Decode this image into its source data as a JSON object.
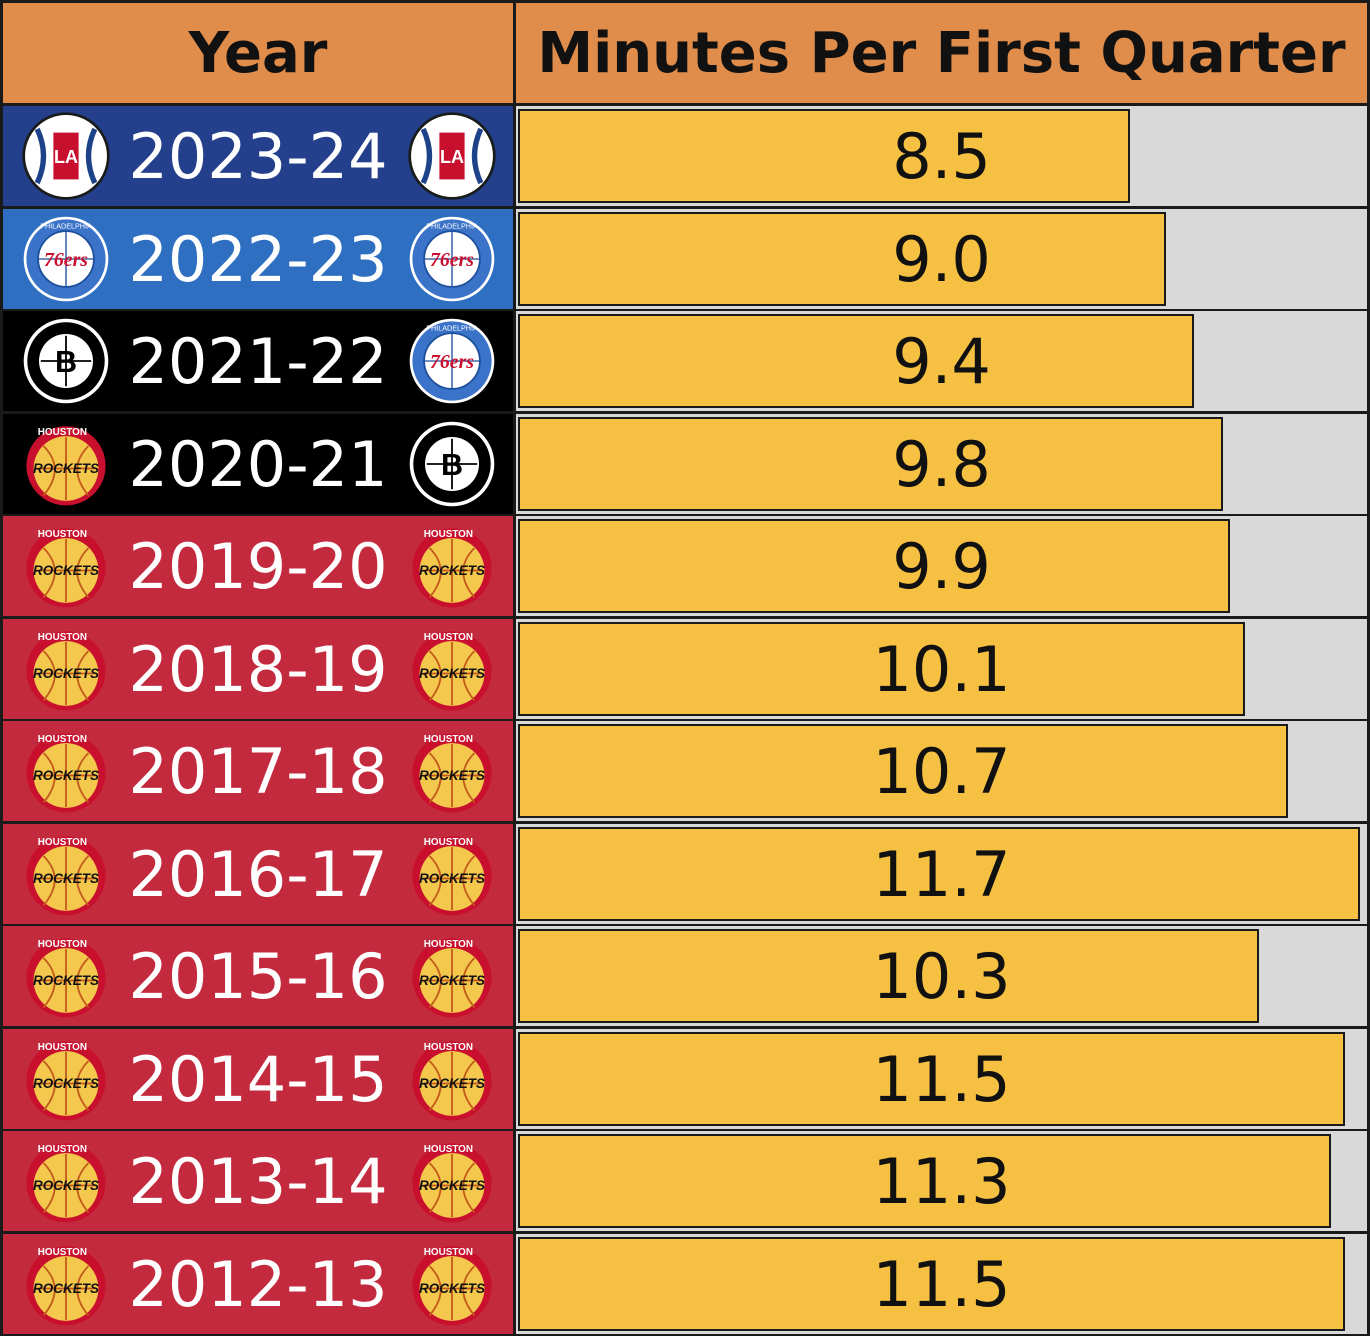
{
  "header": {
    "year_label": "Year",
    "metric_label": "Minutes Per First Quarter"
  },
  "colors": {
    "header_bg": "#e08c4a",
    "bar_fill": "#f6c142",
    "bar_track": "#d9d9d9",
    "clippers_bg": "#24408c",
    "sixers_bg": "#2f6fc2",
    "nets_bg": "#000000",
    "rockets_bg": "#c42a3e"
  },
  "chart_data": {
    "type": "bar",
    "xlabel": "Year",
    "ylabel": "Minutes Per First Quarter",
    "ylim": [
      0,
      11.8
    ],
    "categories": [
      "2023-24",
      "2022-23",
      "2021-22",
      "2020-21",
      "2019-20",
      "2018-19",
      "2017-18",
      "2016-17",
      "2015-16",
      "2014-15",
      "2013-14",
      "2012-13"
    ],
    "values": [
      8.5,
      9.0,
      9.4,
      9.8,
      9.9,
      10.1,
      10.7,
      11.7,
      10.3,
      11.5,
      11.3,
      11.5
    ],
    "labels": [
      "8.5",
      "9.0",
      "9.4",
      "9.8",
      "9.9",
      "10.1",
      "10.7",
      "11.7",
      "10.3",
      "11.5",
      "11.3",
      "11.5"
    ]
  },
  "rows": [
    {
      "year": "2023-24",
      "bg": "clippers",
      "left_logo": "clippers-logo",
      "right_logo": "clippers-logo"
    },
    {
      "year": "2022-23",
      "bg": "sixers",
      "left_logo": "sixers-logo",
      "right_logo": "sixers-logo"
    },
    {
      "year": "2021-22",
      "bg": "nets",
      "left_logo": "nets-logo",
      "right_logo": "sixers-logo"
    },
    {
      "year": "2020-21",
      "bg": "nets",
      "left_logo": "rockets-logo",
      "right_logo": "nets-logo"
    },
    {
      "year": "2019-20",
      "bg": "rockets",
      "left_logo": "rockets-logo",
      "right_logo": "rockets-logo"
    },
    {
      "year": "2018-19",
      "bg": "rockets",
      "left_logo": "rockets-logo",
      "right_logo": "rockets-logo"
    },
    {
      "year": "2017-18",
      "bg": "rockets",
      "left_logo": "rockets-logo",
      "right_logo": "rockets-logo"
    },
    {
      "year": "2016-17",
      "bg": "rockets",
      "left_logo": "rockets-logo",
      "right_logo": "rockets-logo"
    },
    {
      "year": "2015-16",
      "bg": "rockets",
      "left_logo": "rockets-logo",
      "right_logo": "rockets-logo"
    },
    {
      "year": "2014-15",
      "bg": "rockets",
      "left_logo": "rockets-logo",
      "right_logo": "rockets-logo"
    },
    {
      "year": "2013-14",
      "bg": "rockets",
      "left_logo": "rockets-logo",
      "right_logo": "rockets-logo"
    },
    {
      "year": "2012-13",
      "bg": "rockets",
      "left_logo": "rockets-logo",
      "right_logo": "rockets-logo"
    }
  ],
  "logos": {
    "clippers": {
      "text": "LA"
    },
    "sixers": {
      "text": "76ers",
      "ring": "PHILADELPHIA"
    },
    "nets": {
      "text": "B",
      "ring": "BROOKLYN NEW YORK"
    },
    "rockets": {
      "text": "ROCKETS",
      "ring": "HOUSTON"
    }
  }
}
